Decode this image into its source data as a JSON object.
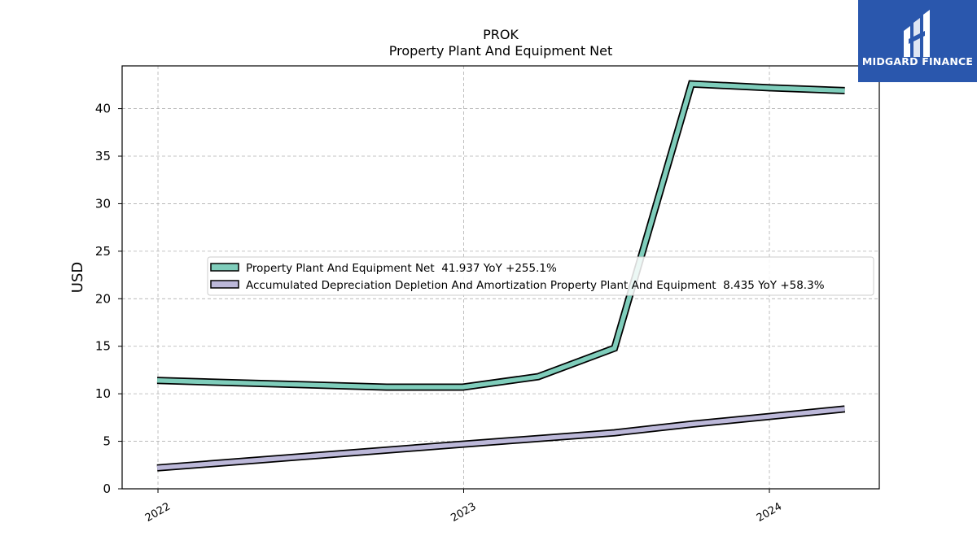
{
  "chart_data": {
    "type": "line",
    "title": "PROK",
    "subtitle": "Property Plant And Equipment Net",
    "ylabel": "USD",
    "xlabel": "",
    "ylim": [
      0,
      44.5
    ],
    "yticks": [
      0,
      5,
      10,
      15,
      20,
      25,
      30,
      35,
      40
    ],
    "xticks": [
      "2022",
      "2023",
      "2024"
    ],
    "grid": true,
    "legend_position": "center",
    "series": [
      {
        "name": "Property Plant And Equipment Net",
        "legend": "Property Plant And Equipment Net  41.937 YoY +255.1%",
        "color": "#7fcdbb",
        "points": [
          {
            "x": "2021-12-31",
            "y": 11.4
          },
          {
            "x": "2022-10-01",
            "y": 10.7
          },
          {
            "x": "2022-12-31",
            "y": 10.7
          },
          {
            "x": "2023-03-31",
            "y": 11.8
          },
          {
            "x": "2023-06-30",
            "y": 14.8
          },
          {
            "x": "2023-09-30",
            "y": 42.6
          },
          {
            "x": "2023-12-31",
            "y": 42.2
          },
          {
            "x": "2024-03-31",
            "y": 41.9
          }
        ]
      },
      {
        "name": "Accumulated Depreciation Depletion And Amortization Property Plant And Equipment",
        "legend": "Accumulated Depreciation Depletion And Amortization Property Plant And Equipment  8.435 YoY +58.3%",
        "color": "#bcb8d9",
        "points": [
          {
            "x": "2021-12-31",
            "y": 2.2
          },
          {
            "x": "2022-12-31",
            "y": 4.7
          },
          {
            "x": "2023-06-30",
            "y": 5.9
          },
          {
            "x": "2023-09-30",
            "y": 6.8
          },
          {
            "x": "2023-12-31",
            "y": 7.6
          },
          {
            "x": "2024-03-31",
            "y": 8.4
          }
        ]
      }
    ]
  },
  "logo": {
    "text": "MIDGARD FINANCE"
  }
}
